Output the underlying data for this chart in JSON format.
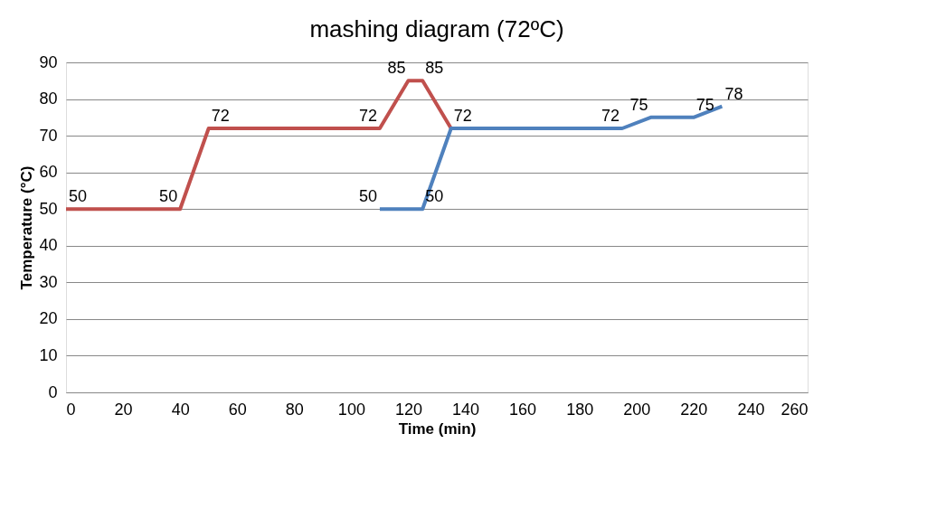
{
  "chart_data": {
    "type": "line",
    "title": "mashing diagram (72ºC)",
    "xlabel": "Time (min)",
    "ylabel": "Temperature (°C)",
    "xlim": [
      0,
      260
    ],
    "xticks": [
      0,
      20,
      40,
      60,
      80,
      100,
      120,
      140,
      160,
      180,
      200,
      220,
      240,
      260
    ],
    "ylim": [
      0,
      90
    ],
    "yticks": [
      0,
      10,
      20,
      30,
      40,
      50,
      60,
      70,
      80,
      90
    ],
    "grid": "y",
    "line_style": "solid",
    "series": [
      {
        "color": "#c0504d",
        "x": [
          0,
          40,
          50,
          110,
          120,
          125,
          135
        ],
        "values": [
          50,
          50,
          72,
          72,
          85,
          85,
          72
        ],
        "value_labels": [
          "50",
          "50",
          "72",
          "72",
          "85",
          "85",
          null
        ]
      },
      {
        "color": "#4f81bd",
        "x": [
          110,
          125,
          135,
          195,
          205,
          220,
          230
        ],
        "values": [
          50,
          50,
          72,
          72,
          75,
          75,
          78
        ],
        "value_labels": [
          "50",
          "50",
          "72",
          "72",
          "75",
          "75",
          "78"
        ]
      }
    ]
  }
}
